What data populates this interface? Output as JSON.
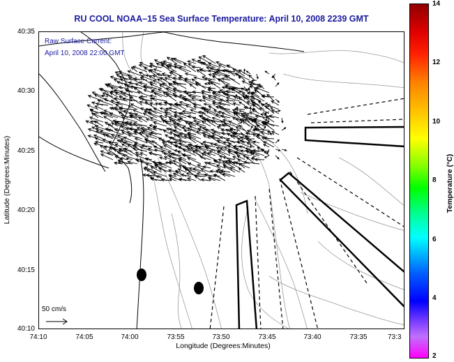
{
  "title": "RU COOL  NOAA–15  Sea Surface Temperature:  April 10, 2008 2239 GMT",
  "raw_current_label": "Raw Surface Current:",
  "raw_current_date": "April 10, 2008 22:00 GMT",
  "y_axis": {
    "title": "Latitude (Degrees:Minutes)",
    "ticks": [
      "40:35",
      "40:30",
      "40:25",
      "40:20",
      "40:15",
      "40:10"
    ]
  },
  "x_axis": {
    "title": "Longitude (Degrees:Minutes)",
    "ticks": [
      "74:10",
      "74:05",
      "74:00",
      "73:55",
      "73:50",
      "73:45",
      "73:40",
      "73:35",
      "73:3"
    ]
  },
  "colorbar": {
    "title": "Temperature (°C)",
    "ticks": [
      "14",
      "12",
      "10",
      "8",
      "6",
      "4",
      "2"
    ]
  },
  "scale_label": "50 cm/s",
  "colors": {
    "title": "#1a1aa0",
    "coast": "#000000",
    "isobath": "#999999"
  }
}
